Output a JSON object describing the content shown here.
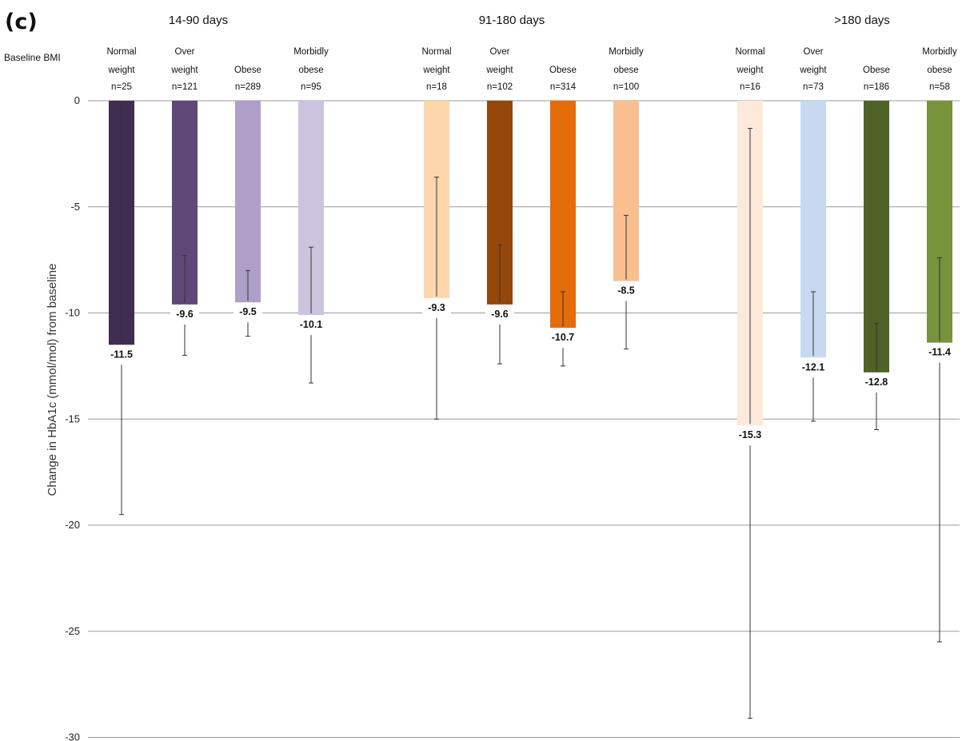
{
  "chart_data": {
    "type": "bar",
    "panel_label": "(c)",
    "row_label": "Baseline BMI",
    "ylabel": "Change in HbA1c (mmol/mol) from baseline",
    "ylim": [
      -30,
      0
    ],
    "yticks": [
      0,
      -5,
      -10,
      -15,
      -20,
      -25,
      -30
    ],
    "grid": true,
    "groups": [
      {
        "label": "14-90 days",
        "bars": [
          {
            "line1": "Normal",
            "line2": "weight",
            "n": "n=25",
            "value": -11.5,
            "label": "-11.5",
            "err_low": -19.5,
            "err_high": -0.1,
            "color": "#3f2d52"
          },
          {
            "line1": "Over",
            "line2": "weight",
            "n": "n=121",
            "value": -9.6,
            "label": "-9.6",
            "err_low": -12.0,
            "err_high": -7.3,
            "color": "#5f4878"
          },
          {
            "line1": "",
            "line2": "Obese",
            "n": "n=289",
            "value": -9.5,
            "label": "-9.5",
            "err_low": -11.1,
            "err_high": -8.0,
            "color": "#ae9fc8"
          },
          {
            "line1": "Morbidly",
            "line2": "obese",
            "n": "n=95",
            "value": -10.1,
            "label": "-10.1",
            "err_low": -13.3,
            "err_high": -6.9,
            "color": "#ccc3df"
          }
        ]
      },
      {
        "label": "91-180 days",
        "bars": [
          {
            "line1": "Normal",
            "line2": "weight",
            "n": "n=18",
            "value": -9.3,
            "label": "-9.3",
            "err_low": -15.0,
            "err_high": -3.6,
            "color": "#fdd6ad"
          },
          {
            "line1": "Over",
            "line2": "weight",
            "n": "n=102",
            "value": -9.6,
            "label": "-9.6",
            "err_low": -12.4,
            "err_high": -6.8,
            "color": "#94470b"
          },
          {
            "line1": "",
            "line2": "Obese",
            "n": "n=314",
            "value": -10.7,
            "label": "-10.7",
            "err_low": -12.5,
            "err_high": -9.0,
            "color": "#e46c0a"
          },
          {
            "line1": "Morbidly",
            "line2": "obese",
            "n": "n=100",
            "value": -8.5,
            "label": "-8.5",
            "err_low": -11.7,
            "err_high": -5.4,
            "color": "#fabf8f"
          }
        ]
      },
      {
        "label": ">180 days",
        "bars": [
          {
            "line1": "Normal",
            "line2": "weight",
            "n": "n=16",
            "value": -15.3,
            "label": "-15.3",
            "err_low": -29.1,
            "err_high": -1.3,
            "color": "#fde9d9"
          },
          {
            "line1": "Over",
            "line2": "weight",
            "n": "n=73",
            "value": -12.1,
            "label": "-12.1",
            "err_low": -15.1,
            "err_high": -9.0,
            "color": "#c6d9f1"
          },
          {
            "line1": "",
            "line2": "Obese",
            "n": "n=186",
            "value": -12.8,
            "label": "-12.8",
            "err_low": -15.5,
            "err_high": -10.5,
            "color": "#4f6228"
          },
          {
            "line1": "Morbidly",
            "line2": "obese",
            "n": "n=58",
            "value": -11.4,
            "label": "-11.4",
            "err_low": -25.5,
            "err_high": -7.4,
            "color": "#77933c"
          }
        ]
      }
    ]
  }
}
